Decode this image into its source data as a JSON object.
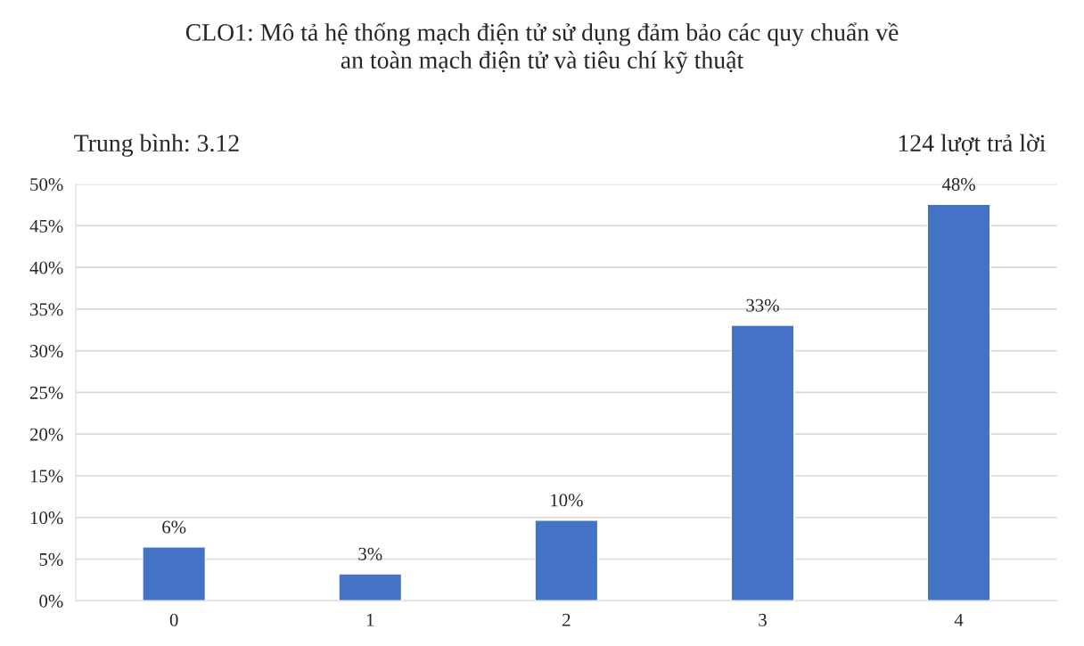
{
  "chart_data": {
    "type": "bar",
    "title": "CLO1: Mô tả hệ thống mạch điện tử sử dụng đảm bảo các quy chuẩn về\nan toàn mạch điện tử và tiêu chí kỹ thuật",
    "categories": [
      "0",
      "1",
      "2",
      "3",
      "4"
    ],
    "values": [
      6.45,
      3.23,
      9.68,
      33.06,
      47.58
    ],
    "value_labels": [
      "6%",
      "3%",
      "10%",
      "33%",
      "48%"
    ],
    "color": "#4472c4",
    "ylim": [
      0,
      50
    ],
    "yticks": [
      {
        "value": 0,
        "label": "0%"
      },
      {
        "value": 5,
        "label": "5%"
      },
      {
        "value": 10,
        "label": "10%"
      },
      {
        "value": 15,
        "label": "15%"
      },
      {
        "value": 20,
        "label": "20%"
      },
      {
        "value": 25,
        "label": "25%"
      },
      {
        "value": 30,
        "label": "30%"
      },
      {
        "value": 35,
        "label": "35%"
      },
      {
        "value": 40,
        "label": "40%"
      },
      {
        "value": 45,
        "label": "45%"
      },
      {
        "value": 50,
        "label": "50%"
      }
    ],
    "grid": "y",
    "annotations": [
      "Trung bình: 3.12",
      "124 lượt trả lời"
    ]
  }
}
